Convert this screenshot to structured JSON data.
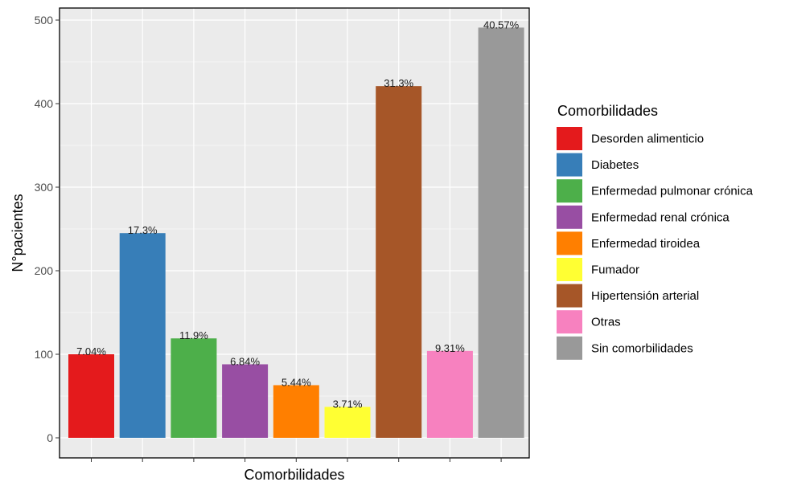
{
  "chart_data": {
    "type": "bar",
    "xlabel": "Comorbilidades",
    "ylabel": "N°pacientes",
    "ylim": [
      0,
      510
    ],
    "yticks": [
      0,
      100,
      200,
      300,
      400,
      500
    ],
    "grid": true,
    "legend": {
      "title": "Comorbilidades",
      "placement": "right"
    },
    "categories": [
      "Desorden alimenticio",
      "Diabetes",
      "Enfermedad pulmonar crónica",
      "Enfermedad renal crónica",
      "Enfermedad tiroidea",
      "Fumador",
      "Hipertensión arterial",
      "Otras",
      "Sin comorbilidades"
    ],
    "values": [
      100,
      245,
      119,
      88,
      63,
      37,
      421,
      104,
      491
    ],
    "labels": [
      "7.04%",
      "17.3%",
      "11.9%",
      "6.84%",
      "5.44%",
      "3.71%",
      "31.3%",
      "9.31%",
      "40.57%"
    ],
    "colors": [
      "#E41A1C",
      "#377EB8",
      "#4DAF4A",
      "#984EA3",
      "#FF7F00",
      "#FFFF33",
      "#A65628",
      "#F781BF",
      "#999999"
    ]
  }
}
